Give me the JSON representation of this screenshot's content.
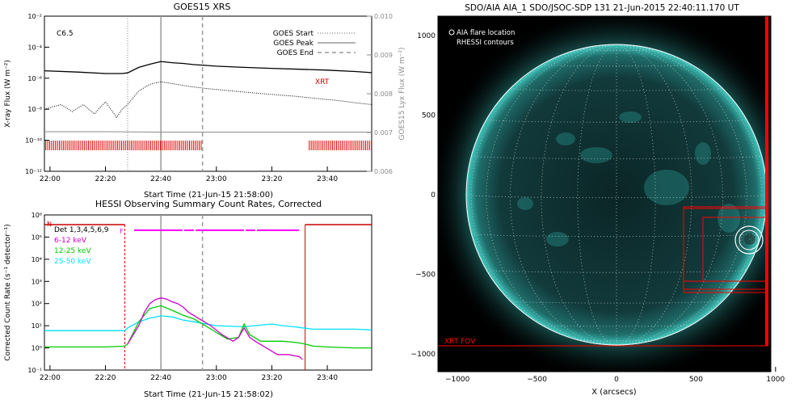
{
  "colors": {
    "flux": "#000000",
    "lya": "#8c8c8c",
    "dot": "#000000",
    "obsbar": "#e00000",
    "night": "#cc0000",
    "flare": "#ff00ff",
    "c612": "#d000d0",
    "c1225": "#00cc00",
    "c2550": "#00e0ff",
    "aia_bg": "#000000",
    "aia_disk": "#0e2a2c",
    "aia_glow": "#28a6a0",
    "grid": "#cfd8d8",
    "xrt": "#ff0000",
    "aia_text": "#ffffff"
  },
  "goes": {
    "title": "GOES15 XRS",
    "class_label": "C6.5",
    "ylabel": "X-ray Flux (W m⁻²)",
    "ylabel_right": "GOES15 Lyx Flux (W m⁻²)",
    "xlabel": "Start Time (21-Jun-15 21:58:00)",
    "xrt_label": "XRT",
    "legend": [
      {
        "label": "GOES Start",
        "style": "dotted"
      },
      {
        "label": "GOES Peak",
        "style": "solid"
      },
      {
        "label": "GOES End",
        "style": "dashed"
      }
    ],
    "y_ticks": [
      "10⁻²",
      "10⁻⁴",
      "10⁻⁶",
      "10⁻⁸",
      "10⁻¹⁰",
      "10⁻¹²"
    ],
    "y2_ticks": [
      "0.010",
      "0.009",
      "0.008",
      "0.007",
      "0.006"
    ],
    "x_ticks": [
      "22:00",
      "22:20",
      "22:40",
      "23:00",
      "23:20",
      "23:40"
    ]
  },
  "hessi": {
    "title": "HESSI Observing Summary Count Rates, Corrected",
    "ylabel": "Corrected Count Rate (s⁻¹ detector⁻¹)",
    "xlabel": "Start Time (21-Jun-15 21:58:02)",
    "det_label": "Det 1,3,4,5,6,9",
    "n_label": "N",
    "f_label": "F",
    "y_ticks": [
      "10⁶",
      "10⁵",
      "10⁴",
      "10³",
      "10²",
      "10¹",
      "10⁰",
      "10⁻¹"
    ],
    "x_ticks": [
      "22:00",
      "22:20",
      "22:40",
      "23:00",
      "23:20",
      "23:40"
    ],
    "bands": [
      {
        "name": "6-12 keV"
      },
      {
        "name": "12-25 keV"
      },
      {
        "name": "25-50 keV"
      }
    ]
  },
  "aia": {
    "title": "SDO/AIA AIA_1 SDO/JSOC-SDP 131 21-Jun-2015 22:40:11.170 UT",
    "legend_line1": "AIA flare location",
    "legend_line2": "RHESSI contours",
    "xlabel": "X (arcsecs)",
    "xrt_fov_label": "XRT FOV",
    "x_ticks": [
      "−1000",
      "−500",
      "0",
      "500",
      "1000"
    ],
    "y_ticks": [
      "1000",
      "500",
      "0",
      "−500",
      "−1000"
    ]
  },
  "chart_data": [
    {
      "type": "line",
      "title": "GOES15 XRS",
      "xlabel": "Start Time (21-Jun-15 21:58:00)",
      "ylabel": "X-ray Flux (W m⁻²)",
      "ylabel_right": "GOES15 Lyx Flux (W m⁻²)",
      "y_log": true,
      "ylim": [
        1e-12,
        0.01
      ],
      "y2lim": [
        0.006,
        0.01
      ],
      "xlim_minutes": [
        -2,
        116
      ],
      "x_ticks": [
        "22:00",
        "22:20",
        "22:40",
        "23:00",
        "23:20",
        "23:40"
      ],
      "event_times_minutes": {
        "start": 28,
        "peak": 40,
        "end": 55
      },
      "series": [
        {
          "name": "XRT",
          "x": [
            -2,
            10,
            20,
            26,
            28,
            32,
            36,
            40,
            44,
            48,
            52,
            55,
            60,
            70,
            80,
            90,
            100,
            110,
            116
          ],
          "y": [
            3e-06,
            2.5e-06,
            2e-06,
            2e-06,
            2.2e-06,
            5e-06,
            8e-06,
            1.2e-05,
            1e-05,
            9e-06,
            7.5e-06,
            7e-06,
            6e-06,
            5e-06,
            4.3e-06,
            3.8e-06,
            3.3e-06,
            2.7e-06,
            2.3e-06
          ]
        },
        {
          "x": [
            -2,
            4,
            8,
            12,
            16,
            20,
            24,
            26,
            28,
            32,
            36,
            40,
            44,
            50,
            56,
            64,
            72,
            80,
            88,
            96,
            104,
            110,
            116
          ],
          "y": [
            1e-08,
            2e-08,
            7e-09,
            2e-08,
            5e-09,
            3e-08,
            3e-09,
            1e-08,
            2e-08,
            1.5e-07,
            4e-07,
            6e-07,
            4.5e-07,
            3e-07,
            2.2e-07,
            1.6e-07,
            1.2e-07,
            9e-08,
            7e-08,
            5e-08,
            3.6e-08,
            2.6e-08,
            2e-08
          ]
        },
        {
          "x": [
            -2,
            20,
            40,
            60,
            80,
            100,
            116
          ],
          "y": [
            0.00702,
            0.00702,
            0.00701,
            0.00701,
            0.00701,
            0.00701,
            0.00701
          ]
        }
      ],
      "obs_intervals_minutes": [
        [
          -2,
          55
        ],
        [
          93,
          116
        ]
      ]
    },
    {
      "type": "line",
      "title": "HESSI Observing Summary Count Rates, Corrected",
      "xlabel": "Start Time (21-Jun-15 21:58:02)",
      "ylabel": "Corrected Count Rate (s⁻¹ detector⁻¹)",
      "y_log": true,
      "ylim": [
        0.1,
        1000000.0
      ],
      "xlim_minutes": [
        -2,
        116
      ],
      "x_ticks": [
        "22:00",
        "22:20",
        "22:40",
        "23:00",
        "23:20",
        "23:40"
      ],
      "night_intervals_minutes": [
        [
          -2,
          27
        ],
        [
          92,
          116
        ]
      ],
      "flare_interval_minutes": [
        28,
        91
      ],
      "series": [
        {
          "name": "6-12 keV",
          "x": [
            28,
            32,
            34,
            36,
            38,
            40,
            42,
            44,
            46,
            48,
            50,
            54,
            58,
            62,
            66,
            68,
            70,
            72,
            74,
            78,
            82,
            86,
            90,
            91
          ],
          "y": [
            1.5,
            10,
            40,
            100,
            150,
            180,
            160,
            120,
            100,
            70,
            40,
            20,
            10,
            4,
            2,
            3,
            8,
            3,
            2,
            1,
            0.5,
            0.5,
            0.4,
            0.3
          ]
        },
        {
          "name": "12-25 keV",
          "x": [
            -2,
            10,
            20,
            27,
            28,
            32,
            36,
            40,
            44,
            48,
            52,
            56,
            60,
            64,
            68,
            70,
            72,
            76,
            80,
            84,
            88,
            91,
            95,
            100,
            110,
            116
          ],
          "y": [
            1.1,
            1.1,
            1.1,
            1.2,
            1.5,
            15,
            60,
            80,
            50,
            30,
            20,
            10,
            5,
            2.5,
            3,
            12,
            4,
            2,
            2,
            2,
            1.8,
            1.6,
            1.2,
            1.1,
            1.0,
            1.0
          ]
        },
        {
          "name": "25-50 keV",
          "x": [
            -2,
            10,
            20,
            27,
            28,
            32,
            36,
            40,
            44,
            48,
            52,
            60,
            70,
            80,
            84,
            88,
            91,
            95,
            100,
            110,
            116
          ],
          "y": [
            6,
            6,
            6,
            6,
            8,
            15,
            22,
            28,
            25,
            18,
            15,
            10,
            9,
            12,
            10,
            9,
            8,
            7,
            7,
            7,
            6.5
          ]
        }
      ]
    }
  ]
}
